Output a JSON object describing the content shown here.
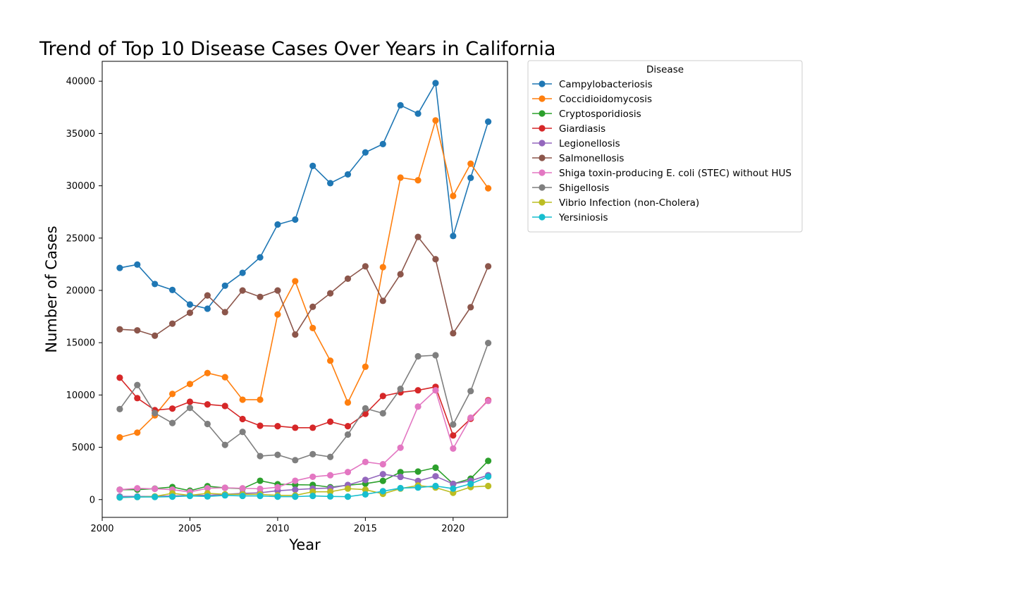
{
  "chart_data": {
    "type": "line",
    "title": "Trend of Top 10 Disease Cases Over Years in California",
    "xlabel": "Year",
    "ylabel": "Number of Cases",
    "xlim": [
      2000,
      2023.1
    ],
    "ylim": [
      -1700,
      41900
    ],
    "xticks": [
      2000,
      2005,
      2010,
      2015,
      2020
    ],
    "yticks": [
      0,
      5000,
      10000,
      15000,
      20000,
      25000,
      30000,
      35000,
      40000
    ],
    "grid": false,
    "legend": {
      "title": "Disease",
      "placement": "outside-upper-right"
    },
    "x": [
      2001,
      2002,
      2003,
      2004,
      2005,
      2006,
      2007,
      2008,
      2009,
      2010,
      2011,
      2012,
      2013,
      2014,
      2015,
      2016,
      2017,
      2018,
      2019,
      2020,
      2021,
      2022
    ],
    "series": [
      {
        "name": "Campylobacteriosis",
        "color": "#1f77b4",
        "values": [
          22150,
          22470,
          20610,
          20040,
          18650,
          18250,
          20450,
          21680,
          23160,
          26300,
          26770,
          31900,
          30250,
          31090,
          33190,
          33990,
          37700,
          36900,
          39820,
          25200,
          30760,
          36130
        ]
      },
      {
        "name": "Coccidioidomycosis",
        "color": "#ff7f0e",
        "values": [
          5950,
          6400,
          8050,
          10100,
          11050,
          12100,
          11700,
          9550,
          9550,
          17700,
          20880,
          16400,
          13280,
          9280,
          12700,
          22220,
          30780,
          30530,
          36250,
          29030,
          32110,
          29760
        ]
      },
      {
        "name": "Cryptosporidiosis",
        "color": "#2ca02c",
        "values": [
          950,
          950,
          1050,
          1200,
          850,
          1280,
          1120,
          1050,
          1800,
          1470,
          1420,
          1400,
          1180,
          1380,
          1520,
          1790,
          2620,
          2680,
          3050,
          1500,
          2000,
          3700
        ]
      },
      {
        "name": "Giardiasis",
        "color": "#d62728",
        "values": [
          11650,
          9700,
          8550,
          8700,
          9350,
          9100,
          8950,
          7700,
          7060,
          7020,
          6870,
          6870,
          7450,
          7020,
          8200,
          9900,
          10250,
          10450,
          10780,
          6130,
          7730,
          9500
        ]
      },
      {
        "name": "Legionellosis",
        "color": "#9467bd",
        "values": [
          300,
          300,
          300,
          350,
          400,
          400,
          500,
          600,
          650,
          850,
          950,
          1050,
          1100,
          1400,
          1880,
          2430,
          2170,
          1780,
          2230,
          1500,
          1800,
          2330
        ]
      },
      {
        "name": "Salmonellosis",
        "color": "#8c564b",
        "values": [
          16280,
          16180,
          15670,
          16820,
          17860,
          19520,
          17920,
          19990,
          19380,
          19990,
          15780,
          18430,
          19720,
          21120,
          22300,
          19000,
          21550,
          25110,
          22980,
          15900,
          18390,
          22300
        ]
      },
      {
        "name": "Shiga toxin-producing E. coli (STEC) without HUS",
        "color": "#e377c2",
        "values": [
          950,
          1080,
          1030,
          950,
          730,
          1080,
          1130,
          1080,
          1030,
          1180,
          1800,
          2180,
          2330,
          2630,
          3600,
          3380,
          4960,
          8890,
          10450,
          4880,
          7830,
          9430
        ]
      },
      {
        "name": "Shigellosis",
        "color": "#7f7f7f",
        "values": [
          8650,
          10950,
          8270,
          7320,
          8770,
          7230,
          5230,
          6470,
          4160,
          4280,
          3770,
          4340,
          4080,
          6220,
          8720,
          8250,
          10580,
          13700,
          13800,
          7180,
          10370,
          14970
        ]
      },
      {
        "name": "Vibrio Infection (non-Cholera)",
        "color": "#bcbd22",
        "values": [
          200,
          250,
          300,
          600,
          400,
          600,
          500,
          500,
          500,
          400,
          400,
          750,
          750,
          1050,
          950,
          550,
          1050,
          1350,
          1150,
          650,
          1200,
          1300
        ]
      },
      {
        "name": "Yersiniosis",
        "color": "#17becf",
        "values": [
          200,
          250,
          250,
          280,
          350,
          300,
          400,
          350,
          350,
          280,
          280,
          350,
          300,
          280,
          500,
          800,
          1100,
          1150,
          1300,
          1050,
          1500,
          2200
        ]
      }
    ]
  }
}
